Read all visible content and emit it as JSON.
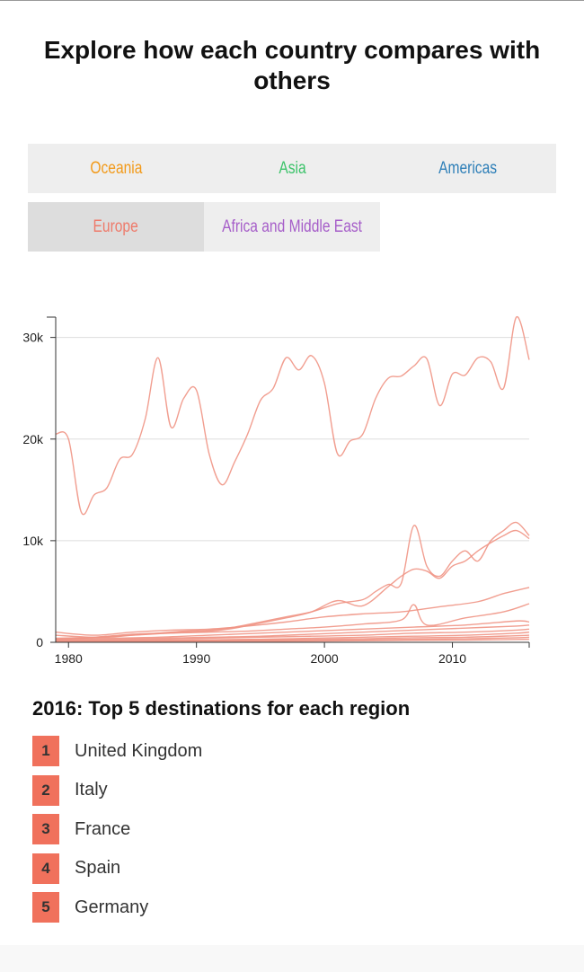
{
  "title": "Explore how each country compares with others",
  "colors": {
    "oceania": "#f29a1a",
    "asia": "#3cc36a",
    "americas": "#2e7fb8",
    "europe": "#ee7a6a",
    "africa": "#a65ec9",
    "badge": "#f0715c",
    "line": "#f09484"
  },
  "tabs": [
    {
      "label": "Oceania",
      "color": "#f29a1a",
      "active": false
    },
    {
      "label": "Asia",
      "color": "#3cc36a",
      "active": false
    },
    {
      "label": "Americas",
      "color": "#2e7fb8",
      "active": false
    },
    {
      "label": "Europe",
      "color": "#ee7a6a",
      "active": true
    },
    {
      "label": "Africa and Middle East",
      "color": "#a65ec9",
      "active": false
    }
  ],
  "chart_data": {
    "type": "line",
    "title": "",
    "xlabel": "",
    "ylabel": "",
    "xlim": [
      1979,
      2016
    ],
    "ylim": [
      0,
      32000
    ],
    "x_ticks": [
      1980,
      1990,
      2000,
      2010
    ],
    "y_ticks": [
      0,
      10000,
      20000,
      30000
    ],
    "y_tick_labels": [
      "0",
      "10k",
      "20k",
      "30k"
    ],
    "grid": true,
    "legend": "none",
    "series": [
      {
        "x": [
          1979,
          1980,
          1981,
          1982,
          1983,
          1984,
          1985,
          1986,
          1987,
          1988,
          1989,
          1990,
          1991,
          1992,
          1993,
          1994,
          1995,
          1996,
          1997,
          1998,
          1999,
          2000,
          2001,
          2002,
          2003,
          2004,
          2005,
          2006,
          2007,
          2008,
          2009,
          2010,
          2011,
          2012,
          2013,
          2014,
          2015,
          2016
        ],
        "y": [
          20500,
          20000,
          12800,
          14500,
          15200,
          18000,
          18500,
          22000,
          28000,
          21200,
          24000,
          24800,
          18500,
          15500,
          17800,
          20500,
          23800,
          25000,
          28000,
          26800,
          28200,
          25500,
          18600,
          19800,
          20500,
          24000,
          26000,
          26200,
          27200,
          27900,
          23300,
          26400,
          26300,
          28000,
          27600,
          25000,
          32000,
          27800
        ]
      },
      {
        "x": [
          1979,
          1981,
          1983,
          1985,
          1987,
          1989,
          1991,
          1993,
          1995,
          1997,
          1999,
          2001,
          2003,
          2004,
          2005,
          2006,
          2007,
          2008,
          2009,
          2010,
          2011,
          2012,
          2013,
          2014,
          2015,
          2016
        ],
        "y": [
          400,
          450,
          500,
          700,
          900,
          1100,
          1200,
          1500,
          2000,
          2500,
          3000,
          3800,
          4200,
          5000,
          5700,
          5800,
          11500,
          7500,
          6500,
          8000,
          9000,
          8000,
          10000,
          11000,
          11800,
          10500
        ]
      },
      {
        "x": [
          1979,
          1981,
          1983,
          1985,
          1987,
          1989,
          1991,
          1993,
          1995,
          1997,
          1999,
          2001,
          2003,
          2005,
          2006,
          2007,
          2008,
          2009,
          2010,
          2011,
          2012,
          2013,
          2014,
          2015,
          2016
        ],
        "y": [
          300,
          400,
          600,
          800,
          900,
          1000,
          1100,
          1400,
          1900,
          2400,
          3000,
          4100,
          3600,
          5500,
          6500,
          7200,
          7000,
          6300,
          7500,
          8000,
          9000,
          9800,
          10500,
          11000,
          10200
        ]
      },
      {
        "x": [
          1979,
          1982,
          1985,
          1988,
          1991,
          1994,
          1997,
          2000,
          2003,
          2006,
          2009,
          2012,
          2014,
          2016
        ],
        "y": [
          1000,
          700,
          1000,
          1200,
          1300,
          1600,
          2000,
          2500,
          2800,
          3000,
          3500,
          4000,
          4800,
          5400
        ]
      },
      {
        "x": [
          1979,
          1982,
          1985,
          1988,
          1991,
          1994,
          1997,
          2000,
          2003,
          2006,
          2007,
          2008,
          2011,
          2014,
          2016
        ],
        "y": [
          700,
          500,
          700,
          900,
          1000,
          1100,
          1300,
          1500,
          1800,
          2200,
          3700,
          1700,
          2400,
          3000,
          3800
        ]
      },
      {
        "x": [
          1979,
          1983,
          1987,
          1991,
          1995,
          1999,
          2003,
          2007,
          2011,
          2015,
          2016
        ],
        "y": [
          300,
          400,
          500,
          700,
          900,
          1100,
          1300,
          1500,
          1700,
          2100,
          2000
        ]
      },
      {
        "x": [
          1979,
          1983,
          1987,
          1991,
          1995,
          1999,
          2003,
          2007,
          2011,
          2015,
          2016
        ],
        "y": [
          200,
          300,
          400,
          500,
          600,
          800,
          1000,
          1200,
          1400,
          1600,
          1700
        ]
      },
      {
        "x": [
          1979,
          1983,
          1987,
          1991,
          1995,
          1999,
          2003,
          2007,
          2011,
          2015,
          2016
        ],
        "y": [
          150,
          200,
          300,
          400,
          500,
          600,
          700,
          900,
          1000,
          1200,
          1300
        ]
      },
      {
        "x": [
          1979,
          1983,
          1987,
          1991,
          1995,
          1999,
          2003,
          2007,
          2011,
          2015,
          2016
        ],
        "y": [
          100,
          150,
          200,
          250,
          300,
          400,
          500,
          600,
          700,
          900,
          1000
        ]
      },
      {
        "x": [
          1979,
          1983,
          1987,
          1991,
          1995,
          1999,
          2003,
          2007,
          2011,
          2015,
          2016
        ],
        "y": [
          80,
          100,
          150,
          200,
          250,
          300,
          350,
          450,
          500,
          650,
          700
        ]
      },
      {
        "x": [
          1979,
          1983,
          1987,
          1991,
          1995,
          1999,
          2003,
          2007,
          2011,
          2015,
          2016
        ],
        "y": [
          50,
          80,
          100,
          150,
          180,
          200,
          250,
          300,
          350,
          450,
          500
        ]
      },
      {
        "x": [
          1979,
          1983,
          1987,
          1991,
          1995,
          1999,
          2003,
          2007,
          2011,
          2015,
          2016
        ],
        "y": [
          30,
          50,
          60,
          80,
          100,
          120,
          150,
          200,
          220,
          280,
          300
        ]
      }
    ]
  },
  "top5": {
    "title": "2016: Top 5 destinations for each region",
    "items": [
      {
        "rank": "1",
        "name": "United Kingdom"
      },
      {
        "rank": "2",
        "name": "Italy"
      },
      {
        "rank": "3",
        "name": "France"
      },
      {
        "rank": "4",
        "name": "Spain"
      },
      {
        "rank": "5",
        "name": "Germany"
      }
    ]
  }
}
